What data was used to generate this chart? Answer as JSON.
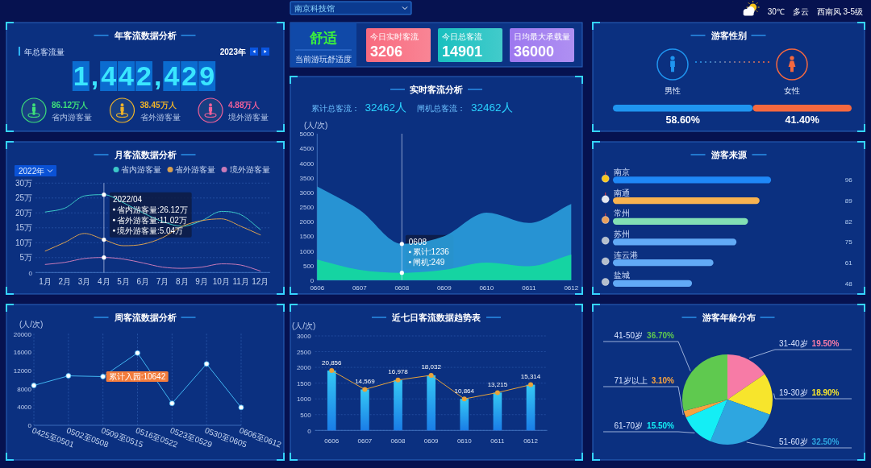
{
  "chart_data": [
    {
      "type": "other",
      "annotations": [
        "南京科技馆",
        "30℃",
        "多云",
        "西南风 3-5级"
      ]
    },
    {
      "type": "other",
      "title": "年客流数据分析",
      "subtitle": "年总客流量",
      "annotations": [
        "2023年",
        "1,442,429",
        "86.12万人",
        "省内游客量",
        "38.45万人",
        "省外游客量",
        "4.88万人",
        "境外游客量"
      ],
      "colors": [
        "#3ee07a",
        "#f0b429",
        "#f0609a"
      ]
    },
    {
      "type": "other",
      "annotations": [
        "舒适",
        "当前游玩舒适度",
        "今日实时客流",
        "3206",
        "今日总客流",
        "14901",
        "日均最大承载量",
        "36000"
      ],
      "colors": [
        "#3cf23c",
        "#f86a7e",
        "#19c0bf",
        "#9d78ef"
      ]
    },
    {
      "type": "bar",
      "title": "游客性别",
      "orientation": "horizontal",
      "stacked": true,
      "categories": [
        null
      ],
      "series": [
        {
          "name": "男性",
          "color": "#1f95f0",
          "values": [
            58.6
          ],
          "value_labels": [
            "58.60%"
          ]
        },
        {
          "name": "女性",
          "color": "#f5683f",
          "values": [
            41.4
          ],
          "value_labels": [
            "41.40%"
          ]
        }
      ]
    },
    {
      "type": "line",
      "title": "月客流数据分析",
      "categories": [
        "1月",
        "2月",
        "3月",
        "4月",
        "5月",
        "6月",
        "7月",
        "8月",
        "9月",
        "10月",
        "11月",
        "12月"
      ],
      "ylim": [
        0,
        30
      ],
      "yticks": [
        0,
        {
          "value": 5,
          "label": "5万"
        },
        {
          "value": 10,
          "label": "10万"
        },
        {
          "value": 15,
          "label": "15万"
        },
        {
          "value": 20,
          "label": "20万"
        },
        {
          "value": 25,
          "label": "25万"
        },
        {
          "value": 30,
          "label": "30万"
        }
      ],
      "grid": "y",
      "legend": "top right",
      "series": [
        {
          "name": "省内游客量",
          "color": "#3cc8c8",
          "values": [
            20.3,
            21.6,
            25.7,
            26.12,
            23.4,
            20.0,
            17.1,
            15.5,
            17.4,
            20.5,
            19.4,
            14.4
          ]
        },
        {
          "name": "省外游客量",
          "color": "#d9a050",
          "values": [
            7.2,
            10.1,
            13.1,
            11.02,
            9.0,
            9.5,
            11.7,
            15.5,
            17.4,
            18.0,
            15.5,
            12.6
          ]
        },
        {
          "name": "境外游客量",
          "color": "#c87ab8",
          "values": [
            2.7,
            3.4,
            4.7,
            5.04,
            4.5,
            3.2,
            1.8,
            1.4,
            1.8,
            2.9,
            2.5,
            0.5
          ]
        }
      ],
      "ref_lines": [
        {
          "axis": "x",
          "value": "4月",
          "color": "#dfe8ff"
        }
      ],
      "annotations": [
        "2022年",
        "2022/04",
        "省内游客量:26.12万",
        "省外游客量:11.02万",
        "境外游客量:5.04万"
      ]
    },
    {
      "type": "area",
      "title": "实时客流分析",
      "ylabel": "(人/次)",
      "categories": [
        "0606",
        "0607",
        "0608",
        "0609",
        "0610",
        "0611",
        "0612"
      ],
      "ylim": [
        0,
        5000
      ],
      "yticks": [
        0,
        500,
        1000,
        1500,
        2000,
        2500,
        3000,
        3500,
        4000,
        4500,
        5000
      ],
      "series": [
        {
          "color": "#2a9fdc",
          "values": [
            3200,
            2400,
            1236,
            1500,
            2300,
            1950,
            2600
          ]
        },
        {
          "color": "#14dc9c",
          "values": [
            700,
            350,
            249,
            350,
            600,
            470,
            870
          ]
        }
      ],
      "ref_lines": [
        {
          "axis": "x",
          "value": "0608",
          "color": "#dfe8ff"
        }
      ],
      "annotations": [
        "累计总客流：",
        "32462人",
        "闸机总客流：",
        "32462人",
        "0608",
        "累计:1236",
        "闸机:249"
      ]
    },
    {
      "type": "bar",
      "title": "游客来源",
      "orientation": "horizontal",
      "categories": [
        "南京",
        "南通",
        "常州",
        "苏州",
        "连云港",
        "盐城"
      ],
      "values": [
        96,
        89,
        82,
        75,
        61,
        48
      ],
      "colors": [
        "#1f88f7",
        "#f8b350",
        "#82e0b4",
        "#62aaf6",
        "#62aaf6",
        "#62aaf6"
      ],
      "data_labels": true
    },
    {
      "type": "line",
      "title": "周客流数据分析",
      "ylabel": "(人/次)",
      "categories": [
        "0425至0501",
        "0502至0508",
        "0509至0515",
        "0516至0522",
        "0523至0529",
        "0530至0605",
        "0606至0612"
      ],
      "ylim": [
        0,
        20000
      ],
      "yticks": [
        0,
        4000,
        8000,
        12000,
        16000,
        20000
      ],
      "grid": "x",
      "marker": "circle",
      "series": [
        {
          "color": "#41b6f2",
          "values": [
            8700,
            10800,
            10642,
            15800,
            4800,
            13400,
            3900
          ]
        }
      ],
      "annotations": [
        {
          "text": "累计入园:10642",
          "x": "0509至0515",
          "y": 10642
        }
      ]
    },
    {
      "type": "bar",
      "title": "近七日客流数据趋势表",
      "ylabel": "(人/次)",
      "categories": [
        "0606",
        "0607",
        "0608",
        "0609",
        "0610",
        "0611",
        "0612"
      ],
      "ylim": [
        0,
        3000
      ],
      "yticks": [
        0,
        500,
        1000,
        1500,
        2000,
        2500,
        3000
      ],
      "grid": "y",
      "marker": "circle",
      "series": [
        {
          "type": "bar",
          "color": "#1fb4f0",
          "values": [
            1900,
            1300,
            1600,
            1750,
            1000,
            1200,
            1450
          ]
        },
        {
          "type": "line",
          "color": "#e8a33a",
          "values": [
            1900,
            1300,
            1600,
            1750,
            1000,
            1200,
            1450
          ]
        }
      ],
      "annotations": [
        {
          "text": "20,856",
          "x": "0606",
          "y": 1900
        },
        {
          "text": "14,569",
          "x": "0607",
          "y": 1300
        },
        {
          "text": "16,978",
          "x": "0608",
          "y": 1600
        },
        {
          "text": "18,032",
          "x": "0609",
          "y": 1750
        },
        {
          "text": "10,864",
          "x": "0610",
          "y": 1000
        },
        {
          "text": "13,215",
          "x": "0611",
          "y": 1200
        },
        {
          "text": "15,314",
          "x": "0612",
          "y": 1450
        }
      ]
    },
    {
      "type": "pie",
      "title": "游客年龄分布",
      "categories": [
        "31-40岁",
        "19-30岁",
        "51-60岁",
        "61-70岁",
        "71岁以上",
        "41-50岁"
      ],
      "values": [
        19.5,
        18.9,
        32.5,
        15.5,
        3.1,
        36.7
      ],
      "colors": [
        "#f77ba6",
        "#f7e52c",
        "#2ea6e0",
        "#14eef5",
        "#f7a33f",
        "#5fc94f"
      ],
      "value_labels": [
        "19.50%",
        "18.90%",
        "32.50%",
        "15.50%",
        "3.10%",
        "36.70%"
      ]
    }
  ]
}
